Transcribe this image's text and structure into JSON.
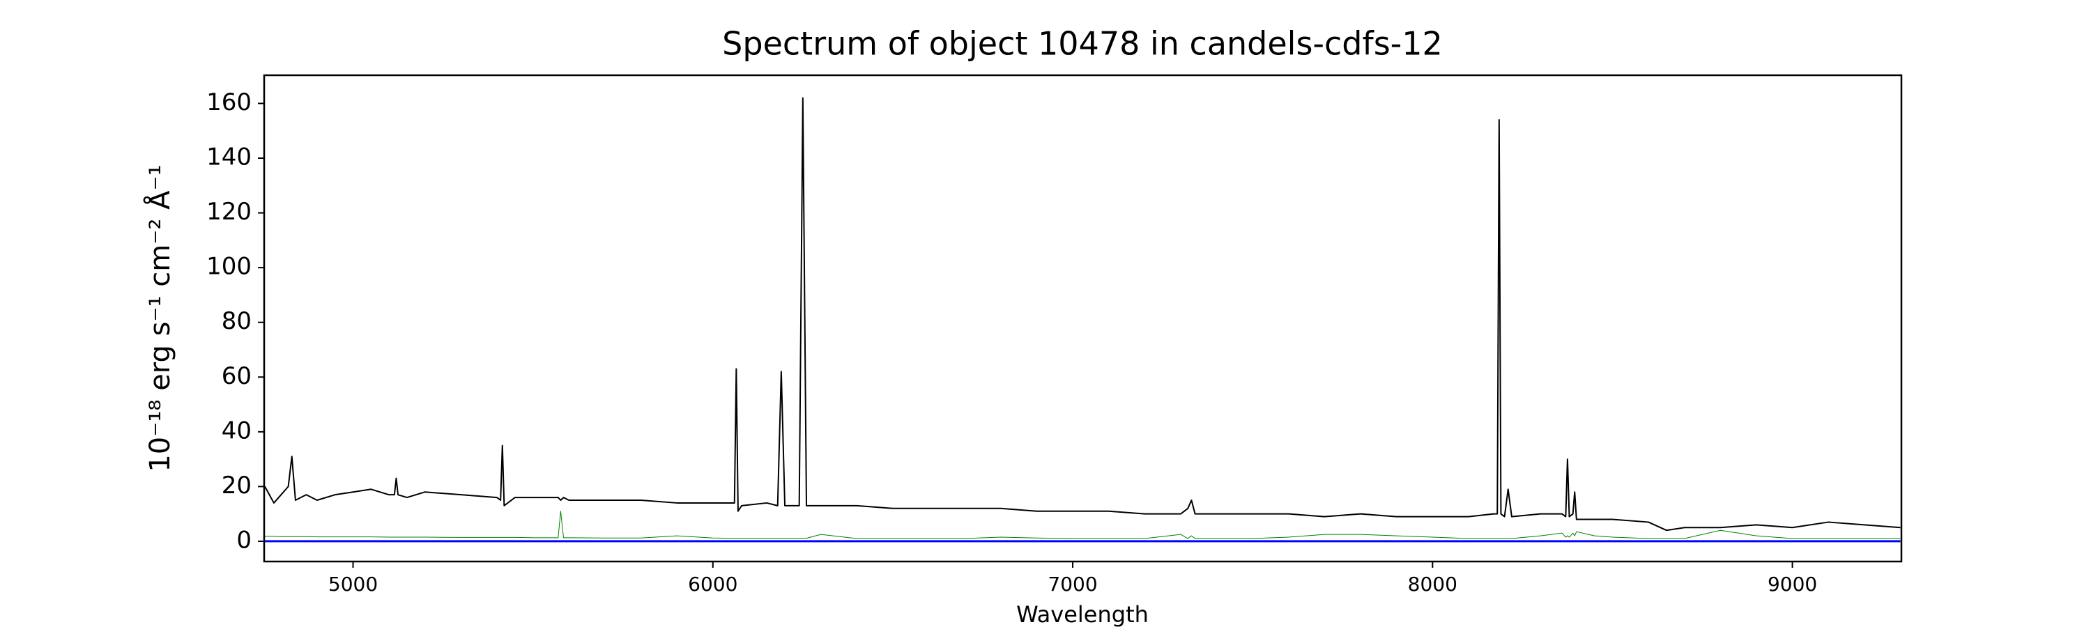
{
  "chart_data": {
    "type": "line",
    "title": "Spectrum of object 10478 in candels-cdfs-12",
    "xlabel": "Wavelength",
    "ylabel": "10⁻¹⁸ erg s⁻¹ cm⁻² Å⁻¹",
    "x": [
      4755,
      4780,
      4800,
      4820,
      4830,
      4840,
      4870,
      4900,
      4950,
      5000,
      5050,
      5100,
      5115,
      5120,
      5125,
      5150,
      5200,
      5300,
      5400,
      5410,
      5415,
      5420,
      5450,
      5500,
      5570,
      5577,
      5585,
      5600,
      5700,
      5800,
      5900,
      6000,
      6050,
      6060,
      6065,
      6070,
      6080,
      6150,
      6180,
      6190,
      6200,
      6240,
      6250,
      6260,
      6300,
      6400,
      6500,
      6600,
      6700,
      6800,
      6900,
      7000,
      7100,
      7200,
      7300,
      7320,
      7330,
      7340,
      7400,
      7500,
      7600,
      7700,
      7800,
      7900,
      8000,
      8100,
      8170,
      8180,
      8185,
      8190,
      8200,
      8210,
      8220,
      8300,
      8360,
      8370,
      8375,
      8380,
      8390,
      8395,
      8400,
      8450,
      8500,
      8600,
      8650,
      8700,
      8800,
      8900,
      9000,
      9100,
      9200,
      9300
    ],
    "series": [
      {
        "color": "#000000",
        "width": 2,
        "values": [
          20,
          14,
          17,
          20,
          31,
          15,
          17,
          15,
          17,
          18,
          19,
          17,
          17,
          23,
          17,
          16,
          18,
          17,
          16,
          15,
          35,
          13,
          16,
          16,
          16,
          15,
          16,
          15,
          15,
          15,
          14,
          14,
          14,
          14,
          63,
          11,
          13,
          14,
          13,
          62,
          13,
          13,
          162,
          13,
          13,
          13,
          12,
          12,
          12,
          12,
          11,
          11,
          11,
          10,
          10,
          12,
          15,
          10,
          10,
          10,
          10,
          9,
          10,
          9,
          9,
          9,
          10,
          10,
          154,
          10,
          9,
          19,
          9,
          10,
          10,
          9,
          30,
          9,
          10,
          18,
          8,
          8,
          8,
          7,
          4,
          5,
          5,
          6,
          5,
          7,
          6,
          5
        ]
      },
      {
        "color": "#008000",
        "width": 1,
        "values": [
          1.8,
          1.8,
          1.7,
          1.7,
          1.7,
          1.7,
          1.7,
          1.6,
          1.6,
          1.6,
          1.6,
          1.5,
          1.5,
          1.5,
          1.5,
          1.5,
          1.5,
          1.4,
          1.4,
          1.4,
          1.4,
          1.4,
          1.4,
          1.3,
          1.3,
          11,
          1.3,
          1.3,
          1.2,
          1.2,
          2,
          1.2,
          1.1,
          1.1,
          1.1,
          1.1,
          1.1,
          1.1,
          1.1,
          1.1,
          1.1,
          1.1,
          1.1,
          1.1,
          2.5,
          1,
          1,
          1,
          1,
          1.5,
          1.2,
          1,
          1,
          1,
          2.5,
          1,
          2,
          1,
          1,
          1,
          1.5,
          2.5,
          2.5,
          2,
          1.5,
          1,
          1,
          1,
          1,
          1,
          1,
          1,
          1,
          2,
          3,
          1.5,
          2,
          1.5,
          3,
          2,
          3.5,
          2,
          1.5,
          1,
          1,
          1,
          4,
          2,
          1,
          1,
          1,
          1
        ]
      },
      {
        "color": "#0000ff",
        "width": 3,
        "values": [
          0,
          0,
          0,
          0,
          0,
          0,
          0,
          0,
          0,
          0,
          0,
          0,
          0,
          0,
          0,
          0,
          0,
          0,
          0,
          0,
          0,
          0,
          0,
          0,
          0,
          0,
          0,
          0,
          0,
          0,
          0,
          0,
          0,
          0,
          0,
          0,
          0,
          0,
          0,
          0,
          0,
          0,
          0,
          0,
          0,
          0,
          0,
          0,
          0,
          0,
          0,
          0,
          0,
          0,
          0,
          0,
          0,
          0,
          0,
          0,
          0,
          0,
          0,
          0,
          0,
          0,
          0,
          0,
          0,
          0,
          0,
          0,
          0,
          0,
          0,
          0,
          0,
          0,
          0,
          0,
          0,
          0,
          0,
          0,
          0,
          0,
          0,
          0,
          0,
          0,
          0,
          0
        ]
      }
    ],
    "xlim": [
      4753,
      9303
    ],
    "ylim": [
      -7.4,
      170.3
    ],
    "xticks": [
      5000,
      6000,
      7000,
      8000,
      9000
    ],
    "yticks": [
      0,
      20,
      40,
      60,
      80,
      100,
      120,
      140,
      160
    ]
  }
}
